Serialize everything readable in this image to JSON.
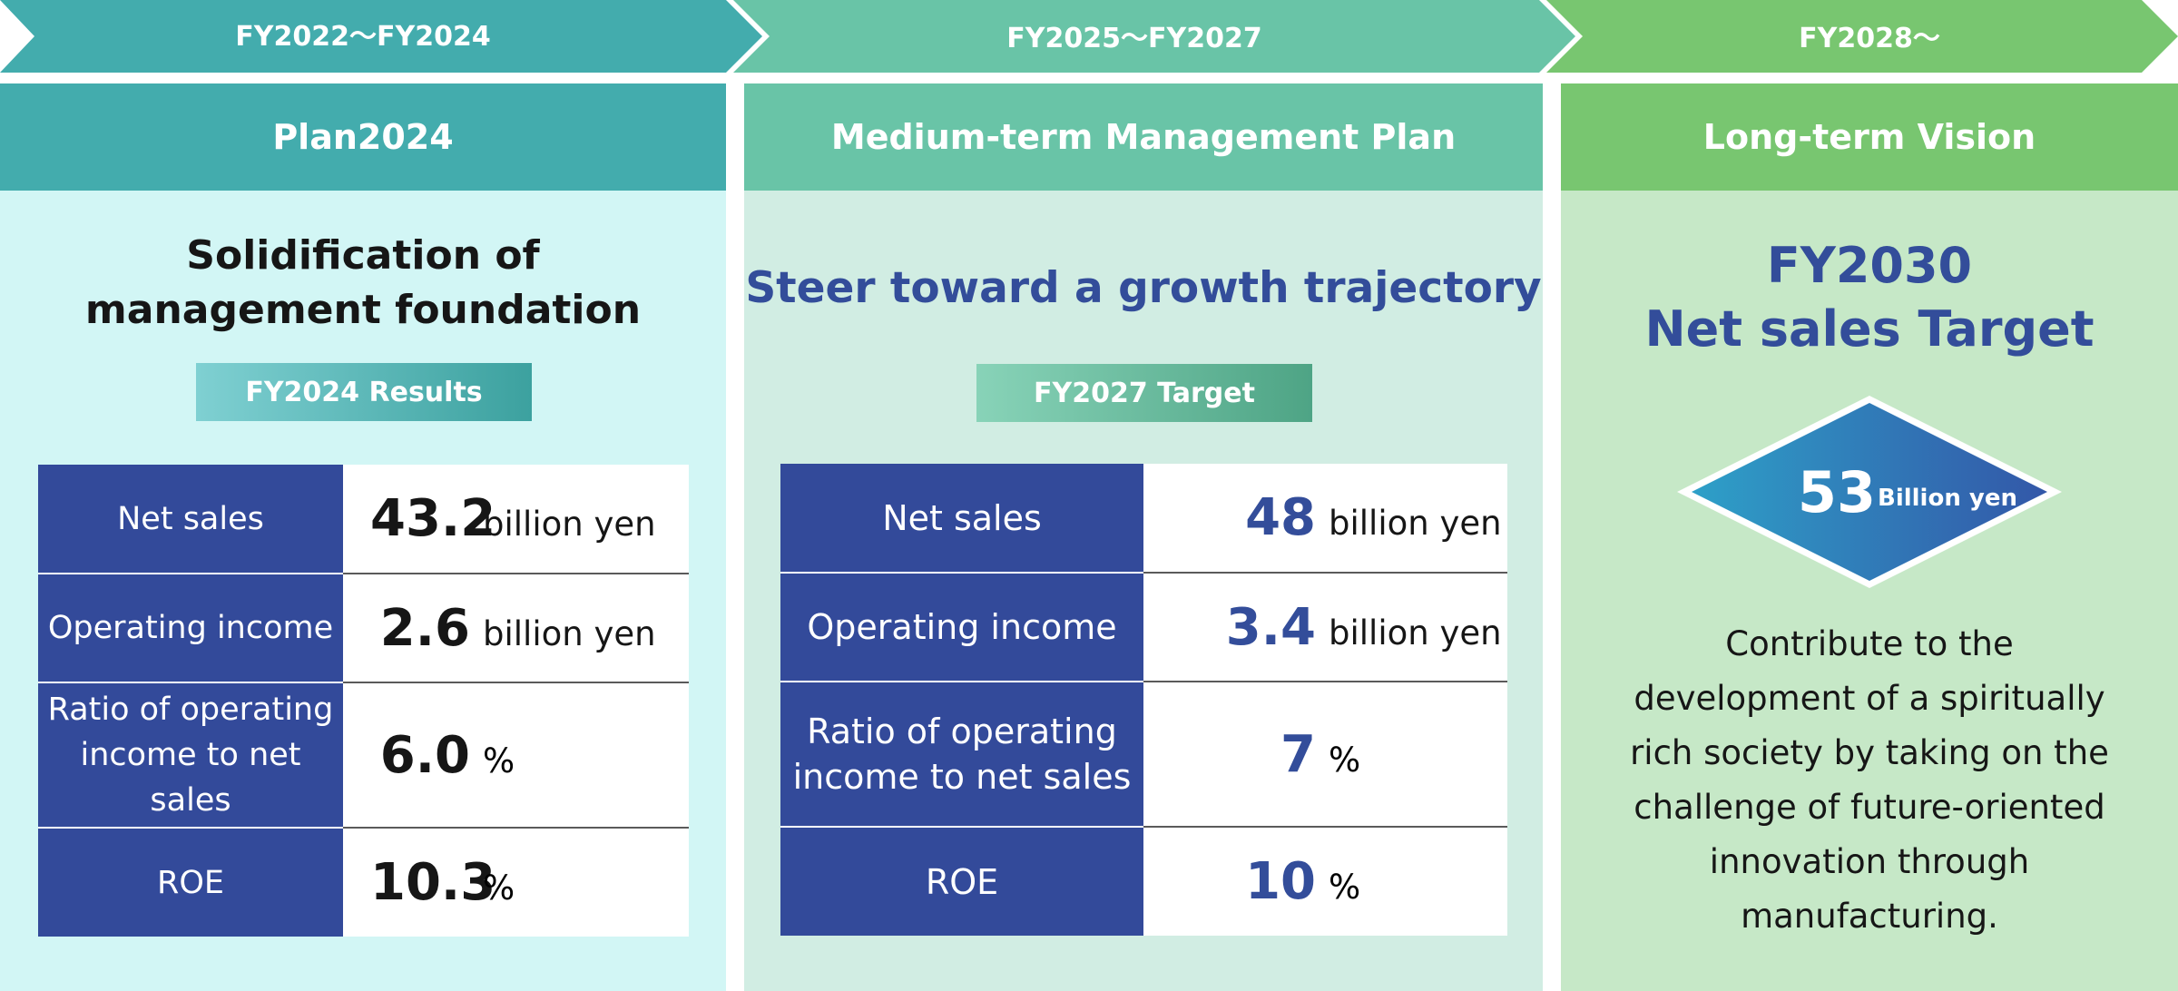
{
  "phases": [
    {
      "label": "FY2022〜FY2024",
      "color": "#43acad"
    },
    {
      "label": "FY2025〜FY2027",
      "color": "#69c4a7"
    },
    {
      "label": "FY2028〜",
      "color": "#78c670"
    }
  ],
  "plan2024": {
    "title": "Plan2024",
    "heading_line1": "Solidification of",
    "heading_line2": "management foundation",
    "badge": "FY2024 Results",
    "rows": [
      {
        "label": "Net sales",
        "value": "43.2",
        "unit": "billion yen"
      },
      {
        "label": "Operating income",
        "value": "2.6",
        "unit": "billion yen"
      },
      {
        "label_line1": "Ratio of operating",
        "label_line2": "income to net sales",
        "value": "6.0",
        "unit": "%"
      },
      {
        "label": "ROE",
        "value": "10.3",
        "unit": "%"
      }
    ]
  },
  "medium_term": {
    "title": "Medium-term Management Plan",
    "heading": "Steer toward a growth trajectory",
    "badge": "FY2027 Target",
    "rows": [
      {
        "label": "Net sales",
        "value": "48",
        "unit": "billion yen"
      },
      {
        "label": "Operating income",
        "value": "3.4",
        "unit": "billion yen"
      },
      {
        "label_line1": "Ratio of operating",
        "label_line2": "income to net sales",
        "value": "7",
        "unit": "%"
      },
      {
        "label": "ROE",
        "value": "10",
        "unit": "%"
      }
    ]
  },
  "long_term": {
    "title": "Long-term Vision",
    "heading_line1": "FY2030",
    "heading_line2": "Net sales Target",
    "target_value": "53",
    "target_unit": "Billion yen",
    "description_lines": [
      "Contribute to the",
      "development of a spiritually",
      "rich society by taking on the",
      "challenge of future-oriented",
      "innovation through",
      "manufacturing."
    ]
  }
}
